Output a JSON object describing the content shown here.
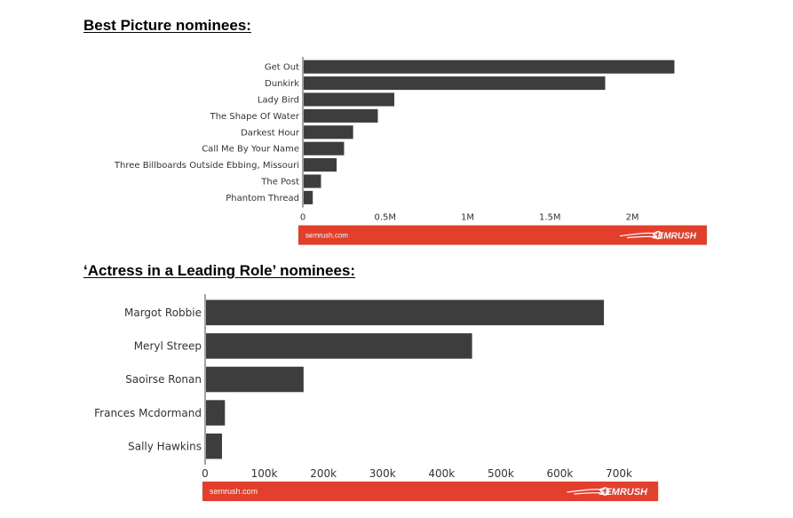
{
  "section1": {
    "heading": "Best Picture nominees:"
  },
  "section2": {
    "heading": "‘Actress in a Leading Role’ nominees:"
  },
  "colors": {
    "bar": "#3d3d3d",
    "footer": "#e23f2d",
    "text": "#333333"
  },
  "chart_data": [
    {
      "type": "bar",
      "orientation": "horizontal",
      "title": "",
      "categories": [
        "Get Out",
        "Dunkirk",
        "Lady Bird",
        "The Shape Of Water",
        "Darkest Hour",
        "Call Me By Your Name",
        "Three Billboards Outside Ebbing, Missouri",
        "The Post",
        "Phantom Thread"
      ],
      "values": [
        2250000,
        1830000,
        550000,
        450000,
        300000,
        245000,
        200000,
        105000,
        55000
      ],
      "xlim": [
        0,
        2350000
      ],
      "xticks": [
        0,
        500000,
        1000000,
        1500000,
        2000000
      ],
      "xtick_labels": [
        "0",
        "0.5M",
        "1M",
        "1.5M",
        "2M"
      ],
      "footer": {
        "left_text": "semrush.com",
        "brand": "SEMRUSH",
        "brand_icon": "semrush-flame-icon"
      }
    },
    {
      "type": "bar",
      "orientation": "horizontal",
      "title": "",
      "categories": [
        "Margot Robbie",
        "Meryl Streep",
        "Saoirse Ronan",
        "Frances Mcdormand",
        "Sally Hawkins"
      ],
      "values": [
        673000,
        450000,
        165000,
        32000,
        27000
      ],
      "xlim": [
        0,
        760000
      ],
      "xticks": [
        0,
        100000,
        200000,
        300000,
        400000,
        500000,
        600000,
        700000
      ],
      "xtick_labels": [
        "0",
        "100k",
        "200k",
        "300k",
        "400k",
        "500k",
        "600k",
        "700k"
      ],
      "footer": {
        "left_text": "semrush.com",
        "brand": "SEMRUSH",
        "brand_icon": "semrush-flame-icon"
      }
    }
  ]
}
